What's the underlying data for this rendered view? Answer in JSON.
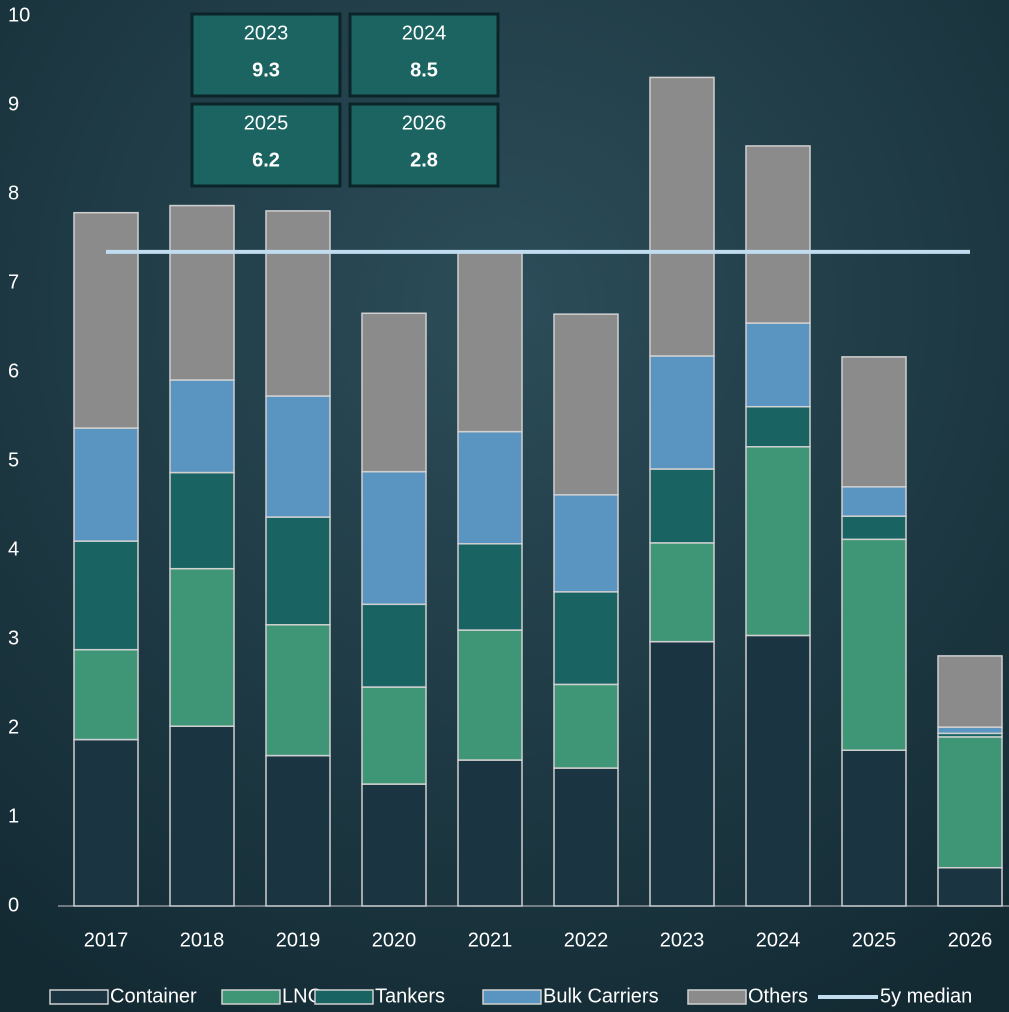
{
  "chart_data": {
    "type": "bar",
    "stacked": true,
    "categories": [
      "2017",
      "2018",
      "2019",
      "2020",
      "2021",
      "2022",
      "2023",
      "2024",
      "2025",
      "2026"
    ],
    "series": [
      {
        "name": "Container",
        "color": "#1b3442",
        "values": [
          1.87,
          2.02,
          1.69,
          1.37,
          1.64,
          1.55,
          2.97,
          3.04,
          1.75,
          0.43
        ]
      },
      {
        "name": "LNG",
        "color": "#3f9676",
        "values": [
          1.01,
          1.77,
          1.47,
          1.09,
          1.46,
          0.94,
          1.11,
          2.12,
          2.37,
          1.47
        ]
      },
      {
        "name": "Tankers",
        "color": "#1a6363",
        "values": [
          1.22,
          1.08,
          1.21,
          0.93,
          0.97,
          1.04,
          0.83,
          0.45,
          0.26,
          0.04
        ]
      },
      {
        "name": "Bulk Carriers",
        "color": "#5a95c2",
        "values": [
          1.27,
          1.04,
          1.36,
          1.49,
          1.26,
          1.09,
          1.27,
          0.94,
          0.33,
          0.07
        ]
      },
      {
        "name": "Others",
        "color": "#8b8b8b",
        "values": [
          2.42,
          1.96,
          2.08,
          1.78,
          2.02,
          2.03,
          3.13,
          1.99,
          1.46,
          0.8
        ]
      },
      {
        "name": "5y median",
        "type": "line",
        "color": "#c2dcef",
        "values": [
          7.35,
          7.35,
          7.35,
          7.35,
          7.35,
          7.35,
          7.35,
          7.35,
          7.35,
          7.35
        ]
      }
    ],
    "ylim": [
      0,
      10
    ],
    "yticks": [
      0,
      1,
      2,
      3,
      4,
      5,
      6,
      7,
      8,
      9,
      10
    ],
    "legend": "bottom",
    "annotations": [
      {
        "label": "2023",
        "value": 9.3
      },
      {
        "label": "2024",
        "value": 8.5
      },
      {
        "label": "2025",
        "value": 6.2
      },
      {
        "label": "2026",
        "value": 2.8
      }
    ]
  }
}
